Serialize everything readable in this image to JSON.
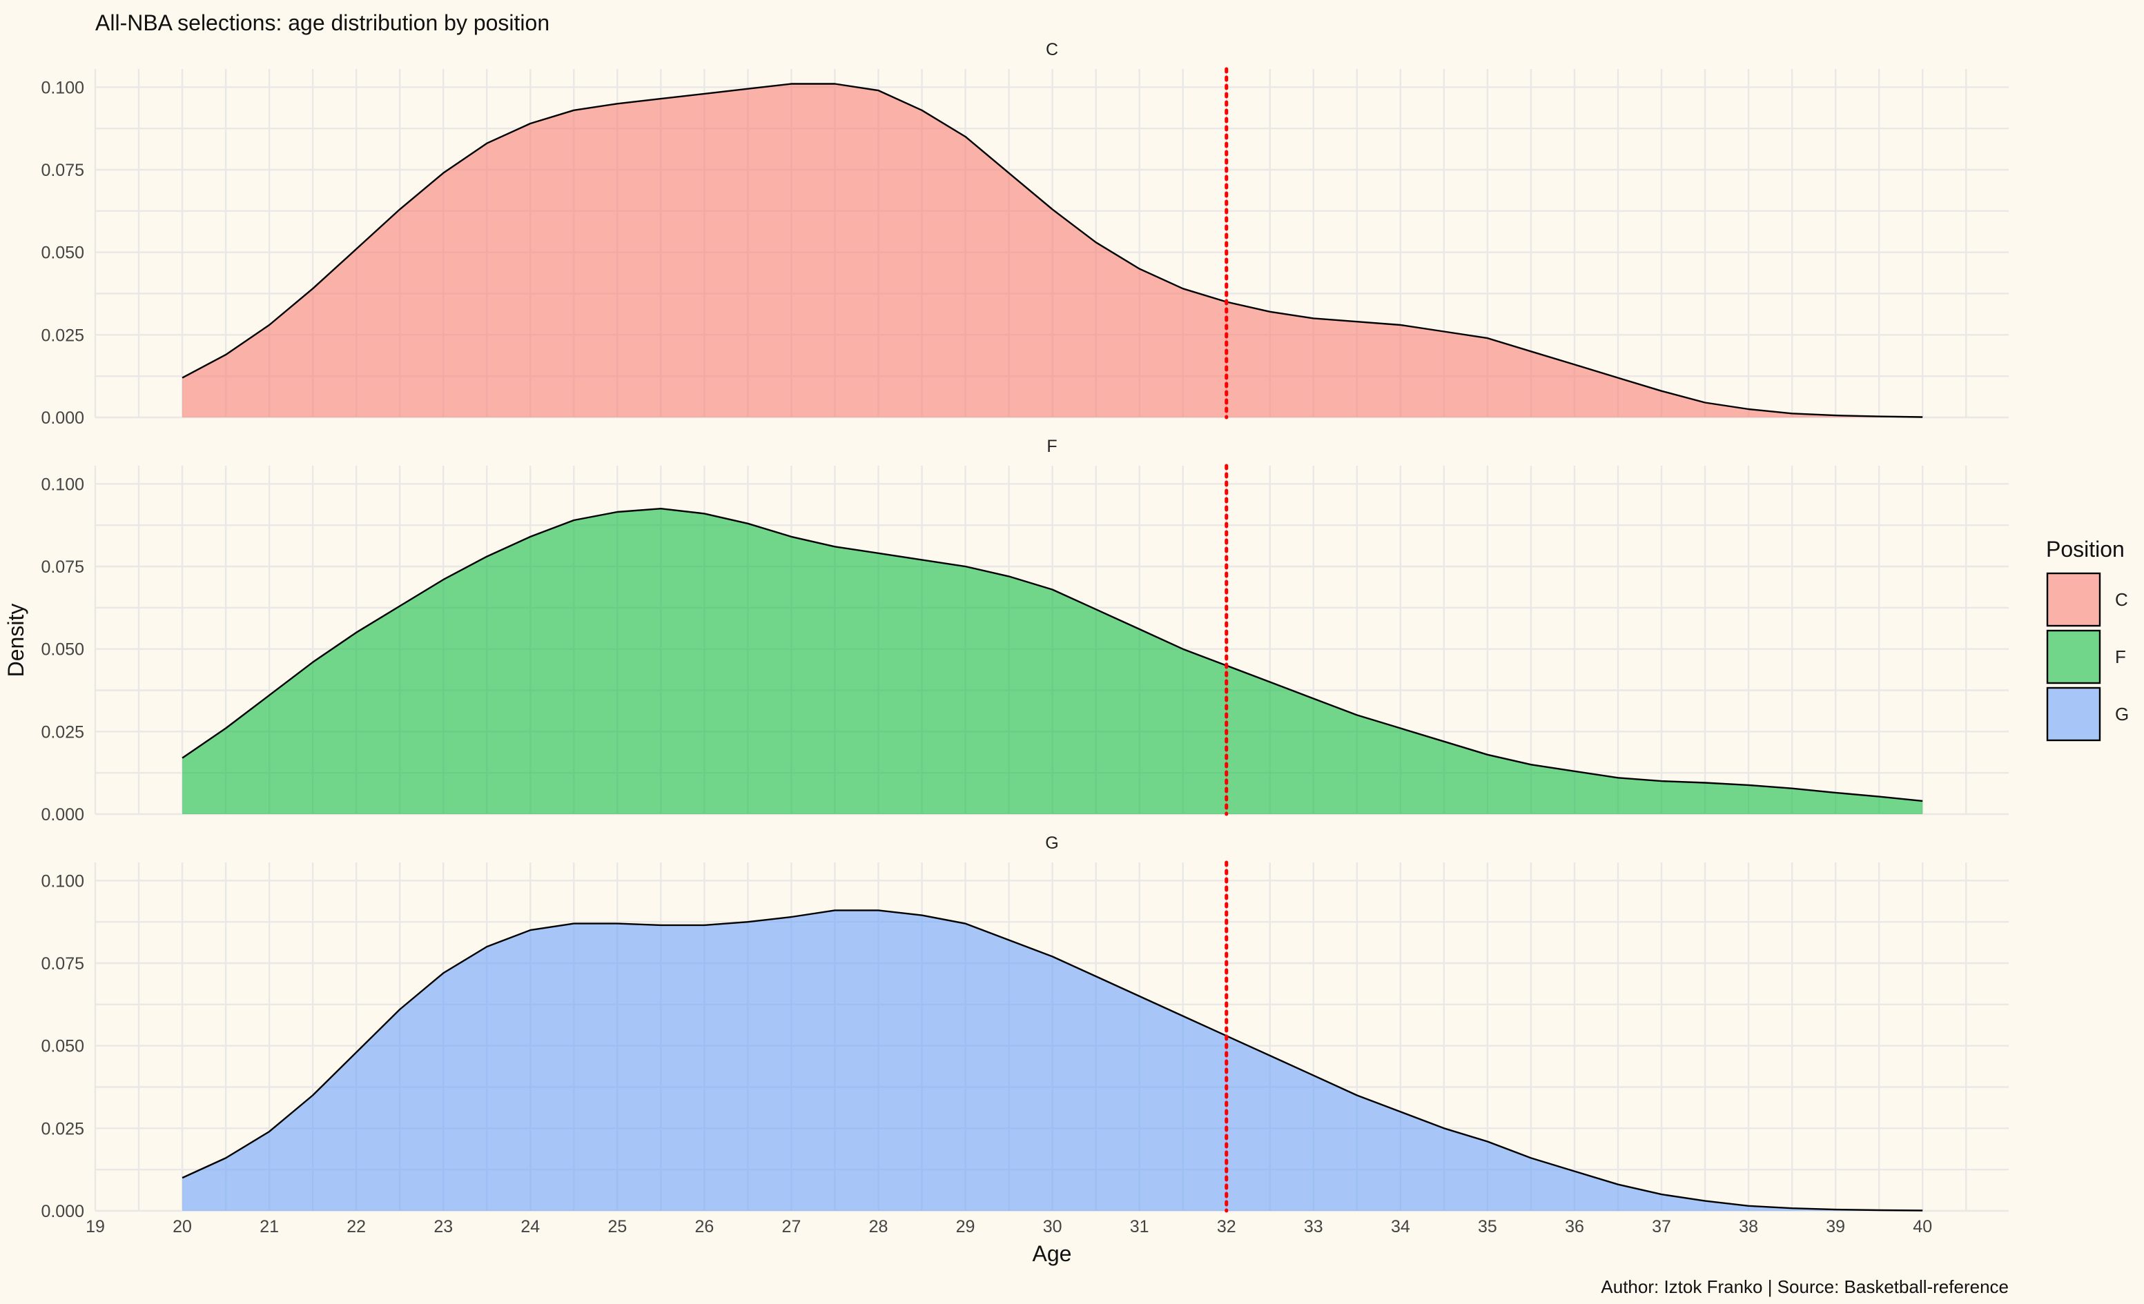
{
  "chart_data": {
    "type": "area",
    "title": "All-NBA selections: age distribution by position",
    "xlabel": "Age",
    "ylabel": "Density",
    "caption": "Author: Iztok Franko | Source: Basketball-reference",
    "xlim": [
      19,
      40.99
    ],
    "ylim": [
      0,
      0.1055
    ],
    "x_ticks": [
      19,
      20,
      21,
      22,
      23,
      24,
      25,
      26,
      27,
      28,
      29,
      30,
      31,
      32,
      33,
      34,
      35,
      36,
      37,
      38,
      39,
      40
    ],
    "y_ticks": [
      "0.000",
      "0.025",
      "0.050",
      "0.075",
      "0.100"
    ],
    "y_tick_values": [
      0,
      0.025,
      0.05,
      0.075,
      0.1
    ],
    "reference_line": {
      "x": 32,
      "style": "dotted",
      "color": "#ff0000"
    },
    "legend": {
      "title": "Position",
      "placement": "right",
      "entries": [
        "C",
        "F",
        "G"
      ]
    },
    "grid": true,
    "facets": [
      {
        "name": "C",
        "color": "#f8766d",
        "x": [
          20,
          20.5,
          21,
          21.5,
          22,
          22.5,
          23,
          23.5,
          24,
          24.5,
          25,
          25.5,
          26,
          26.5,
          27,
          27.5,
          28,
          28.5,
          29,
          29.5,
          30,
          30.5,
          31,
          31.5,
          32,
          32.5,
          33,
          33.5,
          34,
          34.5,
          35,
          35.5,
          36,
          36.5,
          37,
          37.5,
          38,
          38.5,
          39,
          39.5,
          40
        ],
        "y": [
          0.012,
          0.019,
          0.028,
          0.039,
          0.051,
          0.063,
          0.074,
          0.083,
          0.089,
          0.093,
          0.095,
          0.0965,
          0.098,
          0.0995,
          0.101,
          0.101,
          0.099,
          0.093,
          0.085,
          0.074,
          0.063,
          0.053,
          0.045,
          0.039,
          0.035,
          0.032,
          0.03,
          0.029,
          0.028,
          0.026,
          0.024,
          0.02,
          0.016,
          0.012,
          0.008,
          0.0045,
          0.0025,
          0.0012,
          0.0006,
          0.0003,
          0.0001
        ]
      },
      {
        "name": "F",
        "color": "#00ba38",
        "x": [
          20,
          20.5,
          21,
          21.5,
          22,
          22.5,
          23,
          23.5,
          24,
          24.5,
          25,
          25.5,
          26,
          26.5,
          27,
          27.5,
          28,
          28.5,
          29,
          29.5,
          30,
          30.5,
          31,
          31.5,
          32,
          32.5,
          33,
          33.5,
          34,
          34.5,
          35,
          35.5,
          36,
          36.5,
          37,
          37.5,
          38,
          38.5,
          39,
          39.5,
          40
        ],
        "y": [
          0.017,
          0.026,
          0.036,
          0.046,
          0.055,
          0.063,
          0.071,
          0.078,
          0.084,
          0.089,
          0.0915,
          0.0925,
          0.091,
          0.088,
          0.084,
          0.081,
          0.079,
          0.077,
          0.075,
          0.072,
          0.068,
          0.062,
          0.056,
          0.05,
          0.045,
          0.04,
          0.035,
          0.03,
          0.026,
          0.022,
          0.018,
          0.015,
          0.013,
          0.011,
          0.01,
          0.0095,
          0.0088,
          0.0078,
          0.0065,
          0.0053,
          0.004
        ]
      },
      {
        "name": "G",
        "color": "#619cff",
        "x": [
          20,
          20.5,
          21,
          21.5,
          22,
          22.5,
          23,
          23.5,
          24,
          24.5,
          25,
          25.5,
          26,
          26.5,
          27,
          27.5,
          28,
          28.5,
          29,
          29.5,
          30,
          30.5,
          31,
          31.5,
          32,
          32.5,
          33,
          33.5,
          34,
          34.5,
          35,
          35.5,
          36,
          36.5,
          37,
          37.5,
          38,
          38.5,
          39,
          39.5,
          40
        ],
        "y": [
          0.01,
          0.016,
          0.024,
          0.035,
          0.048,
          0.061,
          0.072,
          0.08,
          0.085,
          0.087,
          0.087,
          0.0865,
          0.0865,
          0.0875,
          0.089,
          0.091,
          0.091,
          0.0895,
          0.087,
          0.082,
          0.077,
          0.071,
          0.065,
          0.059,
          0.053,
          0.047,
          0.041,
          0.035,
          0.03,
          0.025,
          0.021,
          0.016,
          0.012,
          0.008,
          0.005,
          0.003,
          0.0015,
          0.0008,
          0.0004,
          0.0002,
          0.0001
        ]
      }
    ]
  }
}
